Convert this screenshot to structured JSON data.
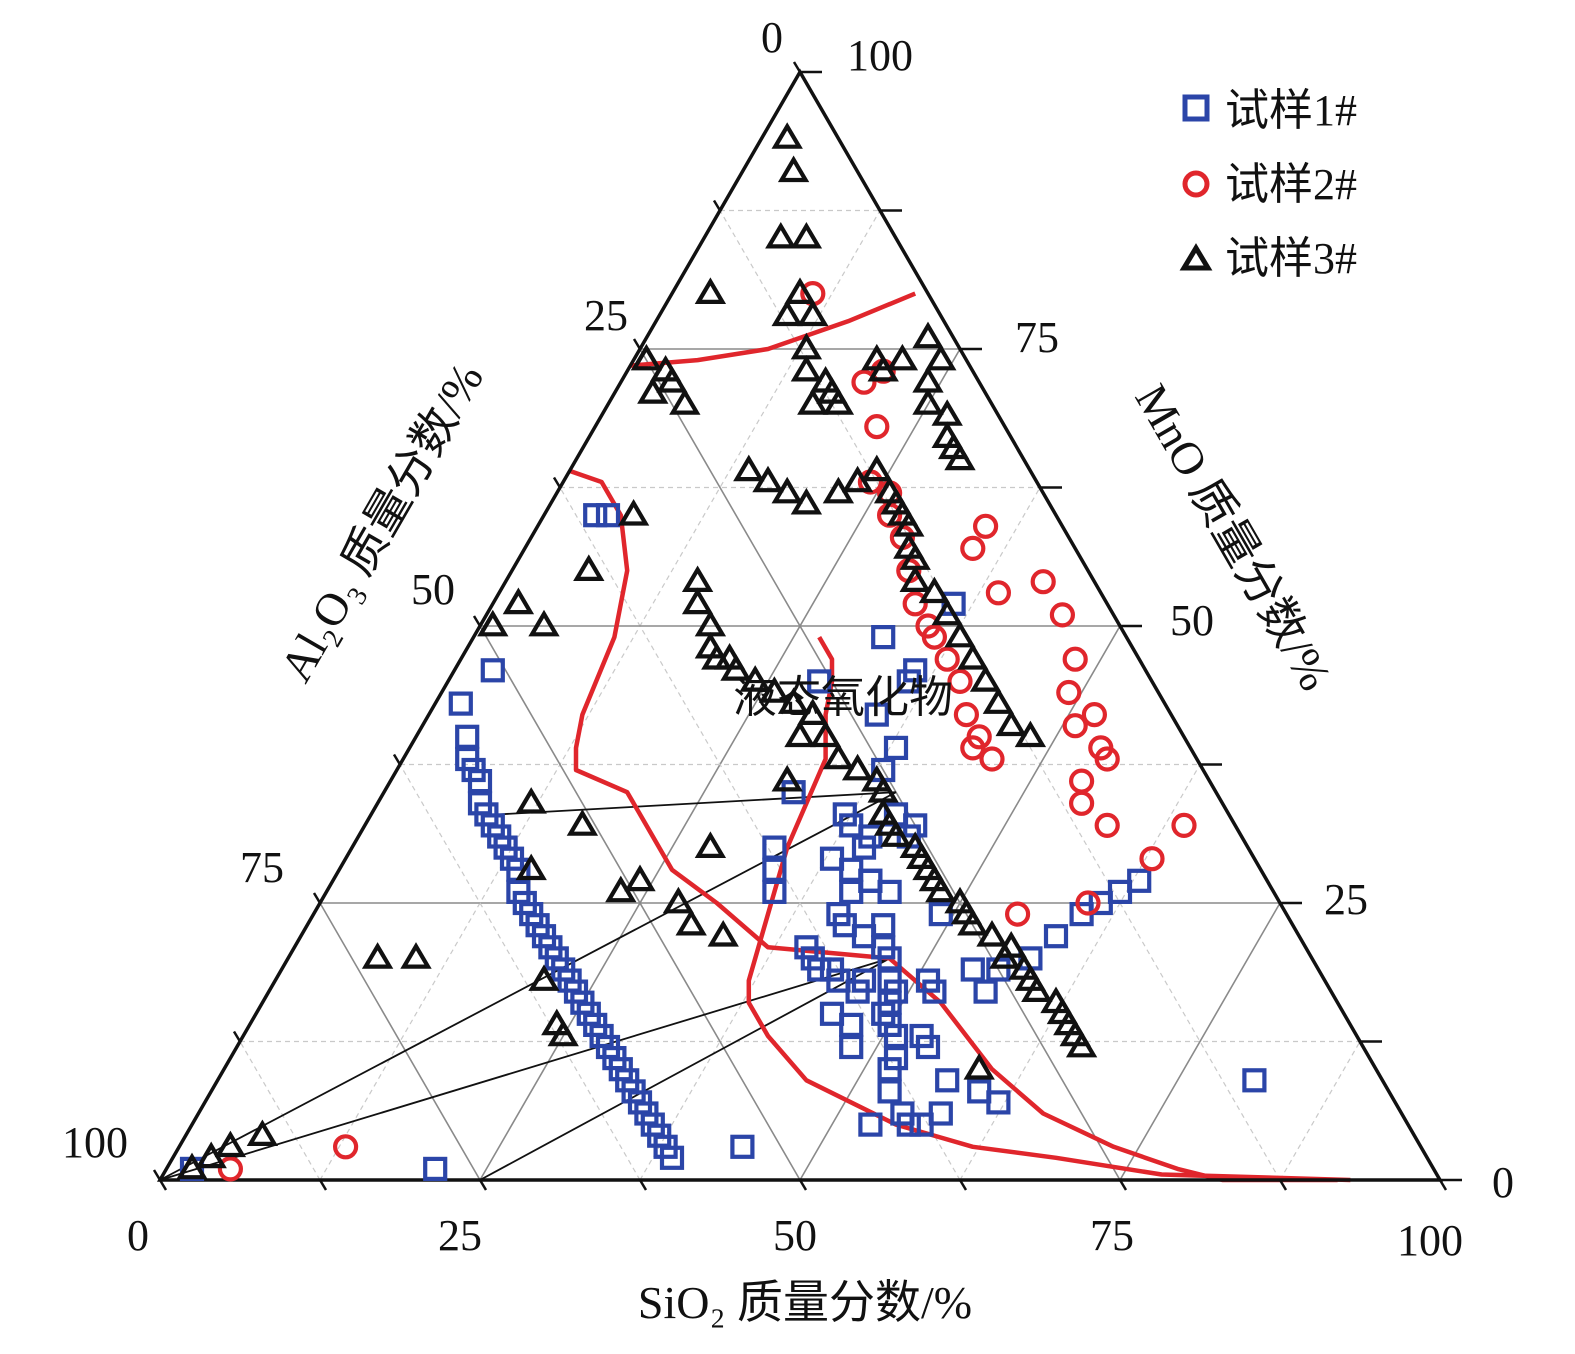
{
  "chart_data": {
    "type": "scatter",
    "subtype": "ternary",
    "axes": {
      "bottom": {
        "label": "SiO₂ 质量分数/%",
        "ticks": [
          "0",
          "25",
          "50",
          "75",
          "100"
        ]
      },
      "left": {
        "label": "Al₂O₃ 质量分数/%",
        "ticks": [
          "0",
          "25",
          "50",
          "75",
          "100"
        ]
      },
      "right": {
        "label": "MnO 质量分数/%",
        "ticks": [
          "0",
          "25",
          "50",
          "75",
          "100"
        ]
      }
    },
    "grid": true,
    "legend_position": "top-right",
    "region_label": "液态氧化物",
    "series": [
      {
        "name": "试样1#",
        "marker": "square",
        "color": "#2b45a8",
        "points": [
          [
            29,
            45
          ],
          [
            32,
            49
          ],
          [
            36,
            52
          ],
          [
            36,
            45
          ],
          [
            36,
            46
          ],
          [
            35,
            42
          ],
          [
            38,
            39
          ],
          [
            38,
            37
          ],
          [
            37,
            33
          ],
          [
            38,
            32
          ],
          [
            40,
            31
          ],
          [
            41,
            33
          ],
          [
            43,
            32
          ],
          [
            43,
            31
          ],
          [
            40,
            30
          ],
          [
            38,
            29
          ],
          [
            40,
            28
          ],
          [
            42,
            27
          ],
          [
            42,
            27
          ],
          [
            41,
            26
          ],
          [
            44,
            26
          ],
          [
            41,
            24
          ],
          [
            42,
            23
          ],
          [
            45,
            23
          ],
          [
            44,
            22
          ],
          [
            46,
            21
          ],
          [
            49,
            24
          ],
          [
            47,
            20
          ],
          [
            44,
            18
          ],
          [
            46,
            18
          ],
          [
            48,
            18
          ],
          [
            46,
            17
          ],
          [
            49,
            17
          ],
          [
            51,
            18
          ],
          [
            49,
            16
          ],
          [
            49,
            15
          ],
          [
            51,
            13
          ],
          [
            53,
            13
          ],
          [
            54,
            12
          ],
          [
            52,
            11
          ],
          [
            57,
            9
          ],
          [
            60,
            8
          ],
          [
            62,
            7
          ],
          [
            44,
            3
          ],
          [
            81,
            9
          ],
          [
            4,
            60
          ],
          [
            5,
            60
          ],
          [
            2,
            1
          ],
          [
            3,
            46
          ],
          [
            21,
            1
          ],
          [
            32,
            35
          ],
          [
            33,
            30
          ],
          [
            34,
            28
          ],
          [
            35,
            26
          ],
          [
            40,
            21
          ],
          [
            41,
            20
          ],
          [
            42,
            19
          ],
          [
            43,
            19
          ],
          [
            45,
            15
          ],
          [
            47,
            14
          ],
          [
            50,
            14
          ],
          [
            48,
            12
          ],
          [
            52,
            10
          ],
          [
            55,
            6
          ],
          [
            57,
            5
          ],
          [
            53,
            5
          ],
          [
            56,
            5
          ],
          [
            58,
            6
          ],
          [
            53,
            8
          ],
          [
            52,
            17
          ],
          [
            54,
            19
          ],
          [
            56,
            19
          ],
          [
            56,
            17
          ],
          [
            58,
            20
          ],
          [
            59,
            22
          ],
          [
            60,
            24
          ],
          [
            61,
            25
          ],
          [
            62,
            26
          ],
          [
            63,
            27
          ],
          [
            2,
            43
          ],
          [
            4,
            40
          ],
          [
            5,
            38
          ],
          [
            6,
            37
          ],
          [
            7,
            36
          ],
          [
            8,
            34
          ],
          [
            9,
            33
          ],
          [
            10,
            32
          ],
          [
            11,
            31
          ],
          [
            12,
            30
          ],
          [
            13,
            29
          ],
          [
            14,
            28
          ],
          [
            15,
            26
          ],
          [
            16,
            25
          ],
          [
            17,
            24
          ],
          [
            18,
            23
          ],
          [
            19,
            22
          ],
          [
            20,
            21
          ],
          [
            21,
            20
          ],
          [
            22,
            19
          ],
          [
            23,
            18
          ],
          [
            24,
            17
          ],
          [
            25,
            16
          ],
          [
            26,
            15
          ],
          [
            27,
            14
          ],
          [
            28,
            13
          ],
          [
            29,
            12
          ],
          [
            30,
            11
          ],
          [
            31,
            10
          ],
          [
            32,
            9
          ],
          [
            33,
            8
          ],
          [
            34,
            7
          ],
          [
            35,
            6
          ],
          [
            36,
            5
          ],
          [
            37,
            4
          ],
          [
            38,
            3
          ],
          [
            39,
            2
          ]
        ]
      },
      {
        "name": "试样2#",
        "marker": "circle",
        "color": "#e0262c",
        "points": [
          [
            5,
            1
          ],
          [
            13,
            3
          ],
          [
            11,
            80
          ],
          [
            19,
            72
          ],
          [
            20,
            73
          ],
          [
            22,
            68
          ],
          [
            24,
            63
          ],
          [
            26,
            62
          ],
          [
            27,
            60
          ],
          [
            29,
            58
          ],
          [
            31,
            55
          ],
          [
            33,
            52
          ],
          [
            35,
            50
          ],
          [
            36,
            49
          ],
          [
            38,
            47
          ],
          [
            40,
            45
          ],
          [
            42,
            42
          ],
          [
            44,
            40
          ],
          [
            44,
            39
          ],
          [
            46,
            38
          ],
          [
            35,
            57
          ],
          [
            35,
            59
          ],
          [
            39,
            53
          ],
          [
            42,
            54
          ],
          [
            45,
            51
          ],
          [
            48,
            47
          ],
          [
            49,
            44
          ],
          [
            51,
            41
          ],
          [
            52,
            42
          ],
          [
            54,
            39
          ],
          [
            55,
            38
          ],
          [
            54,
            36
          ],
          [
            55,
            34
          ],
          [
            58,
            32
          ],
          [
            60,
            25
          ],
          [
            55,
            24
          ],
          [
            63,
            29
          ],
          [
            64,
            32
          ]
        ]
      },
      {
        "name": "试样3#",
        "marker": "triangle",
        "color": "#111111",
        "points": [
          [
            2,
            94
          ],
          [
            4,
            91
          ],
          [
            6,
            85
          ],
          [
            3,
            80
          ],
          [
            8,
            85
          ],
          [
            10,
            80
          ],
          [
            10,
            78
          ],
          [
            12,
            78
          ],
          [
            13,
            75
          ],
          [
            14,
            73
          ],
          [
            16,
            72
          ],
          [
            16,
            70
          ],
          [
            17,
            71
          ],
          [
            18,
            70
          ],
          [
            19,
            74
          ],
          [
            20,
            73
          ],
          [
            21,
            74
          ],
          [
            22,
            76
          ],
          [
            24,
            74
          ],
          [
            24,
            72
          ],
          [
            25,
            70
          ],
          [
            27,
            69
          ],
          [
            28,
            67
          ],
          [
            29,
            66
          ],
          [
            30,
            65
          ],
          [
            14,
            64
          ],
          [
            16,
            63
          ],
          [
            18,
            62
          ],
          [
            20,
            61
          ],
          [
            22,
            62
          ],
          [
            23,
            63
          ],
          [
            24,
            64
          ],
          [
            26,
            62
          ],
          [
            27,
            61
          ],
          [
            28,
            60
          ],
          [
            29,
            59
          ],
          [
            30,
            57
          ],
          [
            31,
            56
          ],
          [
            32,
            54
          ],
          [
            34,
            53
          ],
          [
            36,
            51
          ],
          [
            38,
            49
          ],
          [
            40,
            47
          ],
          [
            42,
            45
          ],
          [
            44,
            43
          ],
          [
            46,
            41
          ],
          [
            48,
            40
          ],
          [
            15,
            54
          ],
          [
            16,
            52
          ],
          [
            18,
            50
          ],
          [
            19,
            48
          ],
          [
            20,
            47
          ],
          [
            21,
            47
          ],
          [
            22,
            46
          ],
          [
            24,
            45
          ],
          [
            26,
            44
          ],
          [
            28,
            43
          ],
          [
            30,
            42
          ],
          [
            30,
            40
          ],
          [
            32,
            40
          ],
          [
            34,
            38
          ],
          [
            36,
            37
          ],
          [
            38,
            36
          ],
          [
            39,
            35
          ],
          [
            40,
            33
          ],
          [
            41,
            32
          ],
          [
            42,
            31
          ],
          [
            44,
            30
          ],
          [
            45,
            29
          ],
          [
            46,
            28
          ],
          [
            47,
            27
          ],
          [
            48,
            26
          ],
          [
            50,
            25
          ],
          [
            51,
            24
          ],
          [
            52,
            23
          ],
          [
            54,
            22
          ],
          [
            56,
            21
          ],
          [
            56,
            20
          ],
          [
            58,
            19
          ],
          [
            59,
            18
          ],
          [
            60,
            17
          ],
          [
            62,
            16
          ],
          [
            63,
            15
          ],
          [
            64,
            14
          ],
          [
            65,
            13
          ],
          [
            66,
            12
          ],
          [
            2,
            1
          ],
          [
            5,
            50
          ],
          [
            2,
            52
          ],
          [
            1,
            50
          ],
          [
            6,
            55
          ],
          [
            7,
            60
          ],
          [
            3,
            73
          ],
          [
            4,
            72
          ],
          [
            6,
            70
          ],
          [
            1,
            74
          ],
          [
            3,
            71
          ],
          [
            12,
            34
          ],
          [
            17,
            32
          ],
          [
            15,
            28
          ],
          [
            23,
            26
          ],
          [
            24,
            27
          ],
          [
            28,
            30
          ],
          [
            7,
            20
          ],
          [
            10,
            20
          ],
          [
            31,
            36
          ],
          [
            28,
            25
          ],
          [
            30,
            23
          ],
          [
            33,
            22
          ],
          [
            21,
            18
          ],
          [
            24,
            14
          ],
          [
            25,
            13
          ],
          [
            59,
            10
          ],
          [
            3,
            2
          ],
          [
            4,
            3
          ],
          [
            6,
            4
          ]
        ]
      }
    ]
  }
}
